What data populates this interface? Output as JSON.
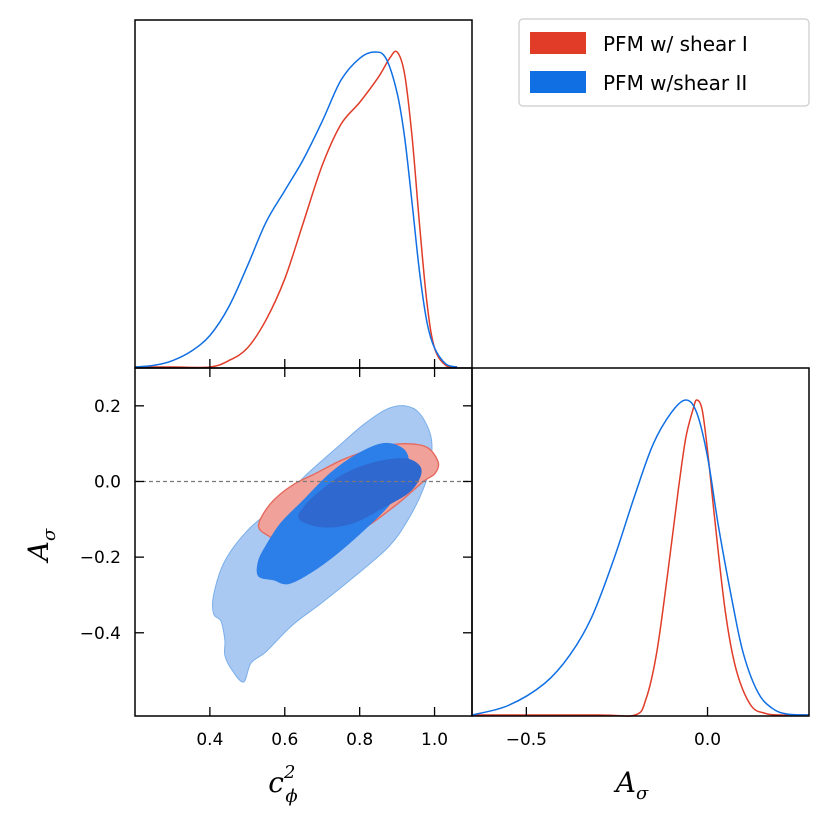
{
  "chart_data": {
    "type": "triangle-corner",
    "colors": {
      "shear1": "#e03c28",
      "shear2": "#0f6fe3"
    },
    "legend": {
      "placement": "top-right",
      "entries": [
        {
          "name": "PFM w/ shear I",
          "color": "#e03c28"
        },
        {
          "name": "PFM w/shear II",
          "color": "#0f6fe3"
        }
      ]
    },
    "axes": {
      "c_phi2": {
        "label_base": "c",
        "label_sub": "ϕ",
        "label_sup": "2",
        "range": [
          0.2,
          1.1
        ],
        "ticks": [
          "0.4",
          "0.6",
          "0.8",
          "1.0"
        ]
      },
      "A_sigma": {
        "label_base": "A",
        "label_sub": "σ",
        "range_2d_y": [
          -0.62,
          0.3
        ],
        "range_1d_x": [
          -0.65,
          0.28
        ],
        "ticks_y": [
          "0.2",
          "0.0",
          "−0.2",
          "−0.4"
        ],
        "ticks_x": [
          "−0.5",
          "0.0"
        ]
      }
    },
    "reference_line": {
      "axis": "A_sigma",
      "value": 0.0,
      "style": "dashed"
    },
    "marginal_c_phi2": {
      "series": [
        {
          "name": "PFM w/ shear I",
          "x": [
            0.2,
            0.3,
            0.4,
            0.45,
            0.5,
            0.55,
            0.6,
            0.65,
            0.7,
            0.75,
            0.8,
            0.85,
            0.88,
            0.9,
            0.92,
            0.94,
            0.96,
            0.98,
            1.0,
            1.03,
            1.06
          ],
          "y": [
            0.0,
            0.0,
            0.0,
            0.02,
            0.06,
            0.15,
            0.28,
            0.46,
            0.64,
            0.77,
            0.84,
            0.92,
            0.98,
            1.0,
            0.93,
            0.73,
            0.45,
            0.2,
            0.06,
            0.005,
            0.0
          ]
        },
        {
          "name": "PFM w/shear II",
          "x": [
            0.2,
            0.25,
            0.3,
            0.35,
            0.4,
            0.45,
            0.5,
            0.55,
            0.6,
            0.65,
            0.7,
            0.75,
            0.8,
            0.84,
            0.87,
            0.9,
            0.92,
            0.94,
            0.96,
            0.98,
            1.0,
            1.03,
            1.06
          ],
          "y": [
            0.0,
            0.005,
            0.02,
            0.05,
            0.1,
            0.19,
            0.32,
            0.46,
            0.56,
            0.66,
            0.78,
            0.91,
            0.98,
            1.0,
            0.98,
            0.87,
            0.73,
            0.52,
            0.3,
            0.14,
            0.06,
            0.01,
            0.0
          ]
        }
      ]
    },
    "marginal_A_sigma": {
      "series": [
        {
          "name": "PFM w/ shear I",
          "x": [
            -0.65,
            -0.3,
            -0.2,
            -0.17,
            -0.14,
            -0.11,
            -0.08,
            -0.06,
            -0.04,
            -0.03,
            -0.015,
            0.0,
            0.02,
            0.05,
            0.08,
            0.12,
            0.16,
            0.2,
            0.28
          ],
          "y": [
            0.0,
            0.0,
            0.0,
            0.05,
            0.2,
            0.45,
            0.72,
            0.88,
            0.97,
            1.0,
            0.97,
            0.84,
            0.62,
            0.32,
            0.14,
            0.03,
            0.005,
            0.0,
            0.0
          ]
        },
        {
          "name": "PFM w/shear II",
          "x": [
            -0.65,
            -0.55,
            -0.45,
            -0.38,
            -0.32,
            -0.26,
            -0.2,
            -0.15,
            -0.1,
            -0.06,
            -0.03,
            0.0,
            0.03,
            0.07,
            0.1,
            0.14,
            0.18,
            0.22,
            0.28
          ],
          "y": [
            0.0,
            0.03,
            0.1,
            0.19,
            0.31,
            0.49,
            0.7,
            0.86,
            0.96,
            1.0,
            0.96,
            0.82,
            0.6,
            0.35,
            0.19,
            0.07,
            0.02,
            0.003,
            0.0
          ]
        }
      ]
    },
    "contours_2d": {
      "x_axis": "c_phi2",
      "y_axis": "A_sigma",
      "regions": [
        {
          "series": "PFM w/shear II",
          "level": "95%",
          "fill": "#a9c9f2",
          "points": [
            [
              0.44,
              -0.46
            ],
            [
              0.46,
              -0.5
            ],
            [
              0.49,
              -0.53
            ],
            [
              0.51,
              -0.48
            ],
            [
              0.55,
              -0.45
            ],
            [
              0.62,
              -0.38
            ],
            [
              0.7,
              -0.32
            ],
            [
              0.8,
              -0.24
            ],
            [
              0.88,
              -0.17
            ],
            [
              0.93,
              -0.1
            ],
            [
              0.97,
              -0.02
            ],
            [
              0.99,
              0.05
            ],
            [
              0.99,
              0.12
            ],
            [
              0.96,
              0.18
            ],
            [
              0.92,
              0.2
            ],
            [
              0.87,
              0.19
            ],
            [
              0.81,
              0.15
            ],
            [
              0.74,
              0.09
            ],
            [
              0.66,
              0.02
            ],
            [
              0.58,
              -0.06
            ],
            [
              0.5,
              -0.13
            ],
            [
              0.44,
              -0.21
            ],
            [
              0.41,
              -0.3
            ],
            [
              0.41,
              -0.35
            ],
            [
              0.43,
              -0.37
            ],
            [
              0.44,
              -0.42
            ]
          ]
        },
        {
          "series": "PFM w/ shear I",
          "level": "95%",
          "fill": "#f0a29a",
          "stroke": "#e56a5f",
          "points": [
            [
              0.53,
              -0.12
            ],
            [
              0.55,
              -0.14
            ],
            [
              0.6,
              -0.16
            ],
            [
              0.7,
              -0.16
            ],
            [
              0.8,
              -0.13
            ],
            [
              0.9,
              -0.06
            ],
            [
              0.97,
              0.0
            ],
            [
              1.0,
              0.02
            ],
            [
              1.01,
              0.05
            ],
            [
              0.98,
              0.09
            ],
            [
              0.92,
              0.1
            ],
            [
              0.85,
              0.09
            ],
            [
              0.76,
              0.06
            ],
            [
              0.68,
              0.02
            ],
            [
              0.62,
              -0.01
            ],
            [
              0.57,
              -0.05
            ],
            [
              0.54,
              -0.09
            ]
          ]
        },
        {
          "series": "PFM w/shear II",
          "level": "68%",
          "fill": "#2c7fe8",
          "points": [
            [
              0.53,
              -0.25
            ],
            [
              0.57,
              -0.26
            ],
            [
              0.61,
              -0.27
            ],
            [
              0.67,
              -0.24
            ],
            [
              0.74,
              -0.19
            ],
            [
              0.82,
              -0.12
            ],
            [
              0.88,
              -0.06
            ],
            [
              0.92,
              0.01
            ],
            [
              0.93,
              0.06
            ],
            [
              0.91,
              0.09
            ],
            [
              0.86,
              0.1
            ],
            [
              0.79,
              0.07
            ],
            [
              0.72,
              0.02
            ],
            [
              0.65,
              -0.05
            ],
            [
              0.59,
              -0.11
            ],
            [
              0.55,
              -0.17
            ],
            [
              0.53,
              -0.21
            ]
          ]
        },
        {
          "series": "PFM w/ shear I",
          "level": "68%",
          "fill": "#2f68cf",
          "points": [
            [
              0.64,
              -0.1
            ],
            [
              0.7,
              -0.12
            ],
            [
              0.78,
              -0.11
            ],
            [
              0.86,
              -0.07
            ],
            [
              0.93,
              -0.03
            ],
            [
              0.96,
              0.01
            ],
            [
              0.96,
              0.04
            ],
            [
              0.92,
              0.06
            ],
            [
              0.84,
              0.05
            ],
            [
              0.76,
              0.02
            ],
            [
              0.69,
              -0.03
            ],
            [
              0.65,
              -0.07
            ]
          ]
        }
      ]
    }
  }
}
